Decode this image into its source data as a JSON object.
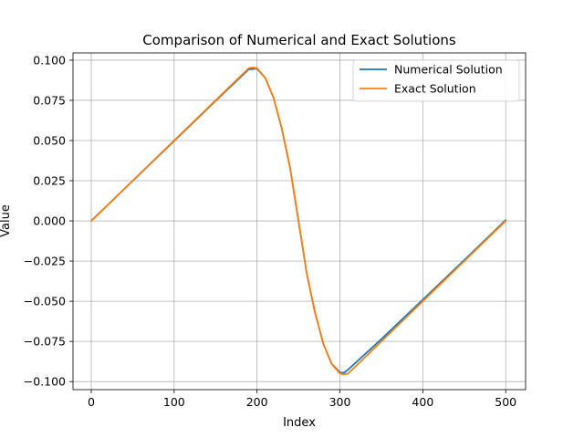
{
  "chart_data": {
    "type": "line",
    "title": "Comparison of Numerical and Exact Solutions",
    "xlabel": "Index",
    "ylabel": "Value",
    "xlim": [
      -22,
      524
    ],
    "ylim": [
      -0.105,
      0.1045
    ],
    "grid": true,
    "legend_position": "top-right",
    "xticks": [
      0,
      100,
      200,
      300,
      400,
      500
    ],
    "xtick_labels": [
      "0",
      "100",
      "200",
      "300",
      "400",
      "500"
    ],
    "yticks": [
      -0.1,
      -0.075,
      -0.05,
      -0.025,
      0.0,
      0.025,
      0.05,
      0.075,
      0.1
    ],
    "ytick_labels": [
      "−0.100",
      "−0.075",
      "−0.050",
      "−0.025",
      "0.000",
      "0.025",
      "0.050",
      "0.075",
      "0.100"
    ],
    "series": [
      {
        "name": "Numerical Solution",
        "color": "#1f77b4",
        "x": [
          0,
          50,
          100,
          150,
          190,
          200,
          210,
          220,
          230,
          240,
          250,
          260,
          270,
          280,
          290,
          300,
          305,
          310,
          350,
          400,
          450,
          500
        ],
        "y": [
          0.0,
          0.0249,
          0.0497,
          0.0746,
          0.0943,
          0.0947,
          0.0889,
          0.0765,
          0.0572,
          0.0327,
          0.0,
          -0.0327,
          -0.0572,
          -0.0765,
          -0.0889,
          -0.0943,
          -0.0945,
          -0.0925,
          -0.0736,
          -0.049,
          -0.0244,
          0.0005
        ]
      },
      {
        "name": "Exact Solution",
        "color": "#ff7f0e",
        "x": [
          0,
          50,
          100,
          150,
          190,
          195,
          200,
          210,
          220,
          230,
          240,
          250,
          260,
          270,
          280,
          290,
          300,
          305,
          310,
          350,
          400,
          450,
          500
        ],
        "y": [
          0.0,
          0.025,
          0.05,
          0.075,
          0.095,
          0.0955,
          0.095,
          0.089,
          0.0765,
          0.0572,
          0.0327,
          0.0,
          -0.0327,
          -0.0572,
          -0.0765,
          -0.089,
          -0.095,
          -0.0955,
          -0.095,
          -0.075,
          -0.05,
          -0.025,
          0.0
        ]
      }
    ]
  }
}
